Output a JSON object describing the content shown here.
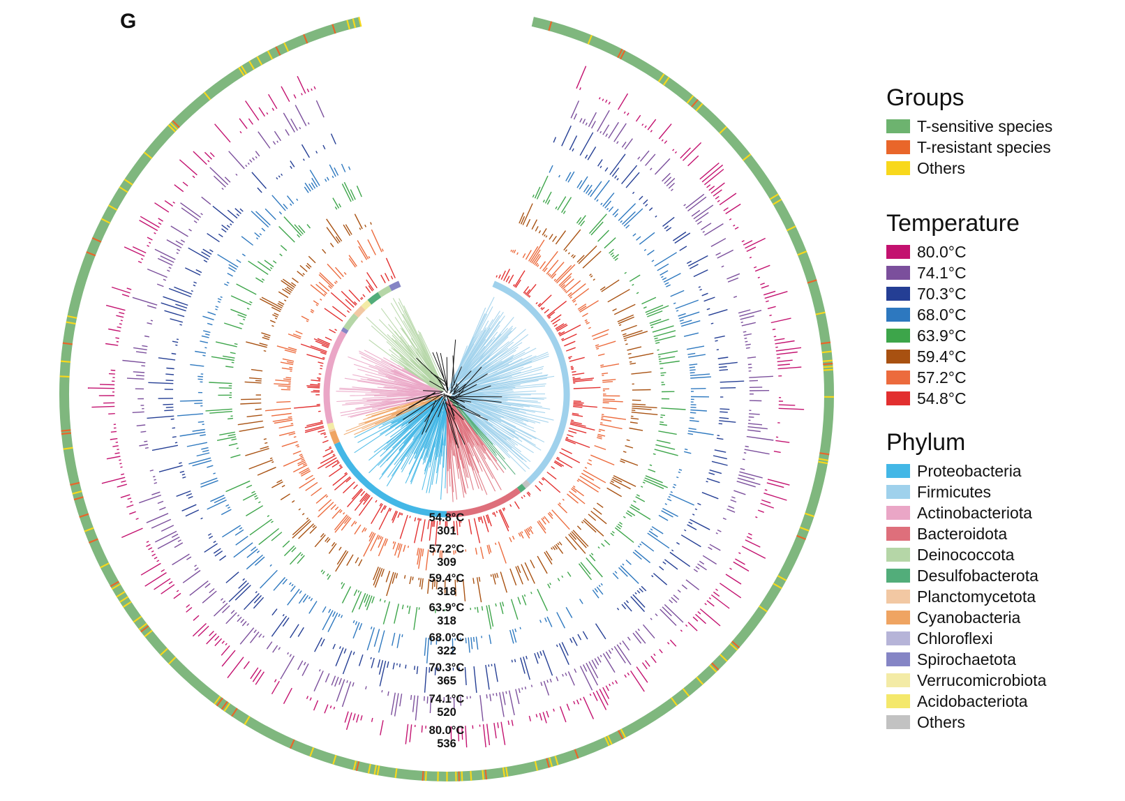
{
  "panel_label": "G",
  "legend": {
    "groups": {
      "title": "Groups",
      "items": [
        {
          "label": "T-sensitive species",
          "color": "#6db36f"
        },
        {
          "label": "T-resistant species",
          "color": "#e9662a"
        },
        {
          "label": "Others",
          "color": "#f8d81c"
        }
      ]
    },
    "temperature": {
      "title": "Temperature",
      "items": [
        {
          "label": "80.0°C",
          "color": "#c3116f"
        },
        {
          "label": "74.1°C",
          "color": "#7b4f9c"
        },
        {
          "label": "70.3°C",
          "color": "#243e94"
        },
        {
          "label": "68.0°C",
          "color": "#2d78bf"
        },
        {
          "label": "63.9°C",
          "color": "#3da54a"
        },
        {
          "label": "59.4°C",
          "color": "#a85111"
        },
        {
          "label": "57.2°C",
          "color": "#ec6b3d"
        },
        {
          "label": "54.8°C",
          "color": "#e22f2f"
        }
      ]
    },
    "phylum": {
      "title": "Phylum",
      "items": [
        {
          "label": "Proteobacteria",
          "color": "#43b7e6"
        },
        {
          "label": "Firmicutes",
          "color": "#9fd1ec"
        },
        {
          "label": "Actinobacteriota",
          "color": "#eaa6c6"
        },
        {
          "label": "Bacteroidota",
          "color": "#de6f7b"
        },
        {
          "label": "Deinococcota",
          "color": "#b5d6a7"
        },
        {
          "label": "Desulfobacterota",
          "color": "#52ad7a"
        },
        {
          "label": "Planctomycetota",
          "color": "#f2c8a3"
        },
        {
          "label": "Cyanobacteria",
          "color": "#efa462"
        },
        {
          "label": "Chloroflexi",
          "color": "#b6b4d8"
        },
        {
          "label": "Spirochaetota",
          "color": "#8585c5"
        },
        {
          "label": "Verrucomicrobiota",
          "color": "#f3eba6"
        },
        {
          "label": "Acidobacteriota",
          "color": "#f4e86b"
        },
        {
          "label": "Others",
          "color": "#c2c2c2"
        }
      ]
    }
  },
  "ring_labels": [
    {
      "temp": "54.8°C",
      "count": "301"
    },
    {
      "temp": "57.2°C",
      "count": "309"
    },
    {
      "temp": "59.4°C",
      "count": "318"
    },
    {
      "temp": "63.9°C",
      "count": "318"
    },
    {
      "temp": "68.0°C",
      "count": "322"
    },
    {
      "temp": "70.3°C",
      "count": "365"
    },
    {
      "temp": "74.1°C",
      "count": "520"
    },
    {
      "temp": "80.0°C",
      "count": "536"
    }
  ]
}
